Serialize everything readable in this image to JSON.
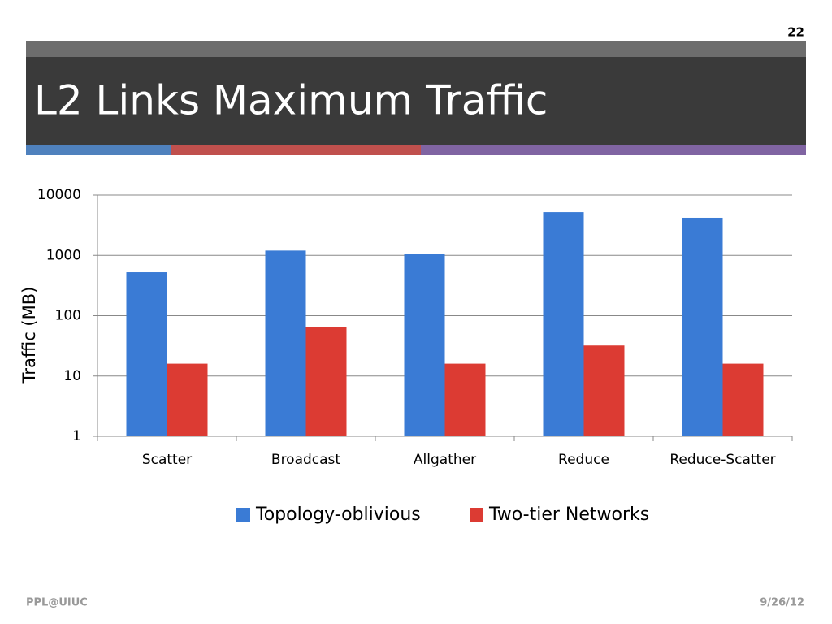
{
  "slide_number": "22",
  "footer": {
    "left": "PPL@UIUC",
    "right": "9/26/12"
  },
  "chart_data": {
    "type": "bar",
    "title": "L2 Links Maximum Traffic",
    "y_label": "Traffic (MB)",
    "categories": [
      "Scatter",
      "Broadcast",
      "Allgather",
      "Reduce",
      "Reduce-Scatter"
    ],
    "series": [
      {
        "name": "Topology-oblivious",
        "color": "#3a7bd5",
        "values": [
          525,
          1200,
          1050,
          5200,
          4200
        ]
      },
      {
        "name": "Two-tier Networks",
        "color": "#dc3b33",
        "values": [
          16,
          64,
          16,
          32,
          16
        ]
      }
    ],
    "ylim": [
      1,
      10000
    ],
    "yticks": [
      1,
      10,
      100,
      1000,
      10000
    ],
    "log_scale": true,
    "grid": true,
    "legend": "bottom"
  }
}
